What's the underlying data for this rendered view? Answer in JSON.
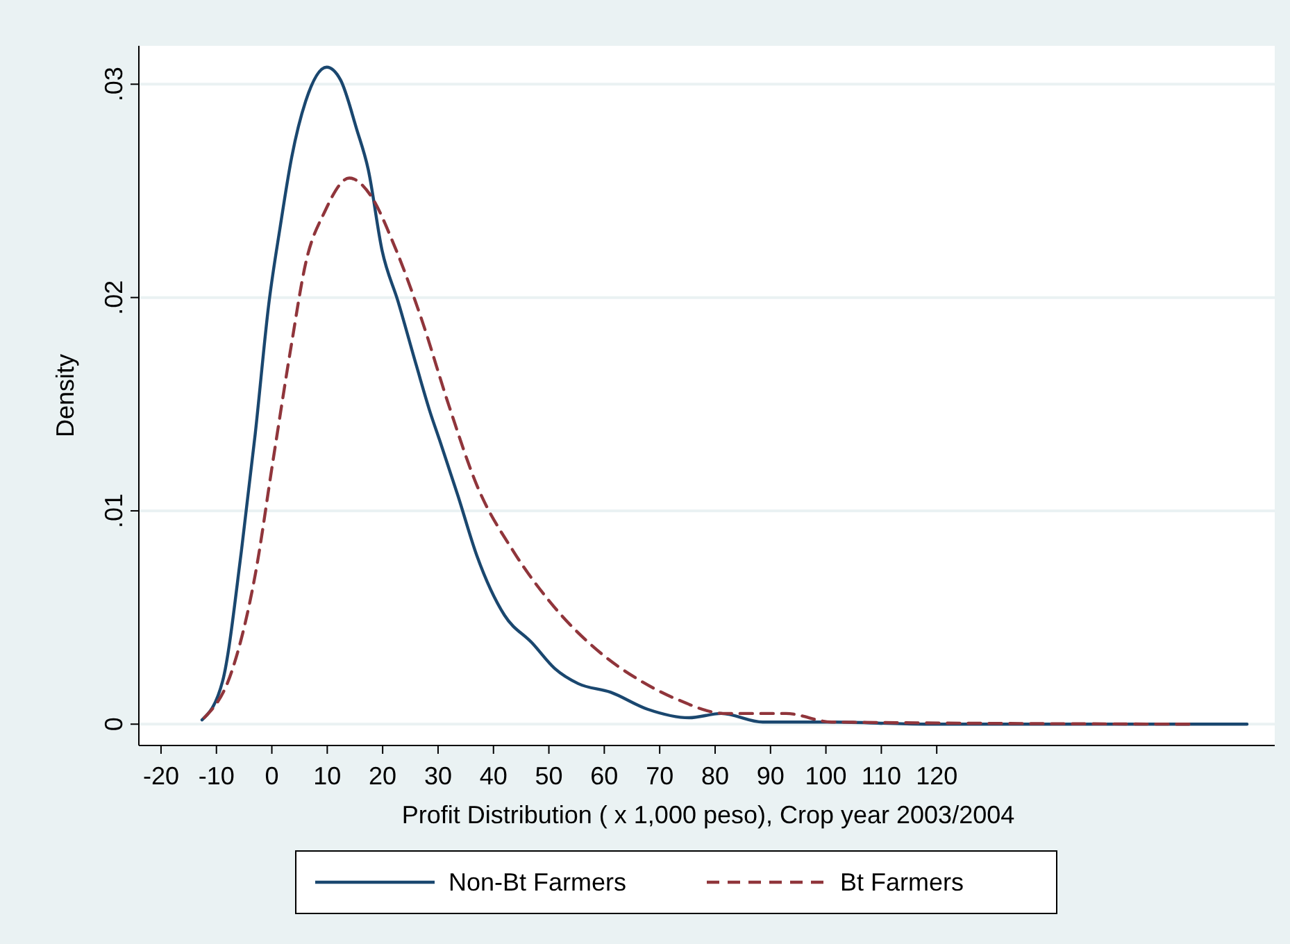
{
  "chart_data": {
    "type": "line",
    "xlabel": "Profit Distribution ( x 1,000 peso), Crop year 2003/2004",
    "ylabel": "Density",
    "xlim": [
      -24,
      181
    ],
    "xticks": [
      -20,
      -10,
      0,
      10,
      20,
      30,
      40,
      50,
      60,
      70,
      80,
      90,
      100,
      110,
      120
    ],
    "ylim": [
      -0.001,
      0.0318
    ],
    "yticks": [
      {
        "value": 0,
        "label": "0"
      },
      {
        "value": 0.01,
        "label": ".01"
      },
      {
        "value": 0.02,
        "label": ".02"
      },
      {
        "value": 0.03,
        "label": ".03"
      }
    ],
    "grid": "y",
    "legend": "bottom",
    "series": [
      {
        "name": "Non-Bt Farmers",
        "color": "#1a476f",
        "line_style": "solid",
        "x": [
          -12.6,
          -8.9,
          -5.5,
          -3,
          -0.5,
          1.5,
          3.6,
          6.1,
          9.9,
          12.4,
          15.3,
          17.4,
          19.9,
          22.8,
          26.1,
          28.6,
          30.3,
          33.6,
          37,
          42,
          47,
          51.1,
          55.3,
          61.1,
          67.8,
          75.3,
          81.1,
          88.6,
          101,
          117.8,
          176
        ],
        "values": [
          0.0002,
          0.002,
          0.0081,
          0.0136,
          0.0198,
          0.0233,
          0.0266,
          0.0292,
          0.0308,
          0.0302,
          0.0279,
          0.026,
          0.0222,
          0.0198,
          0.0168,
          0.0146,
          0.0133,
          0.0107,
          0.0079,
          0.0051,
          0.0038,
          0.0026,
          0.0019,
          0.0015,
          0.0007,
          0.0003,
          0.0005,
          0.0001,
          0.0001,
          0,
          0
        ]
      },
      {
        "name": "Bt Farmers",
        "color": "#90353b",
        "line_style": "dashed",
        "x": [
          -12.2,
          -7.2,
          -3,
          0.3,
          3.6,
          6.1,
          9.5,
          14,
          17.8,
          22,
          27,
          32,
          37,
          43.6,
          50.3,
          59.5,
          66.1,
          72.8,
          81.9,
          92.8,
          101,
          166
        ],
        "values": [
          0.0003,
          0.0025,
          0.007,
          0.0125,
          0.0179,
          0.0216,
          0.024,
          0.0256,
          0.0248,
          0.0225,
          0.019,
          0.0149,
          0.0112,
          0.0081,
          0.0057,
          0.0033,
          0.0021,
          0.0012,
          0.0005,
          0.0005,
          0.0001,
          0
        ]
      }
    ]
  }
}
